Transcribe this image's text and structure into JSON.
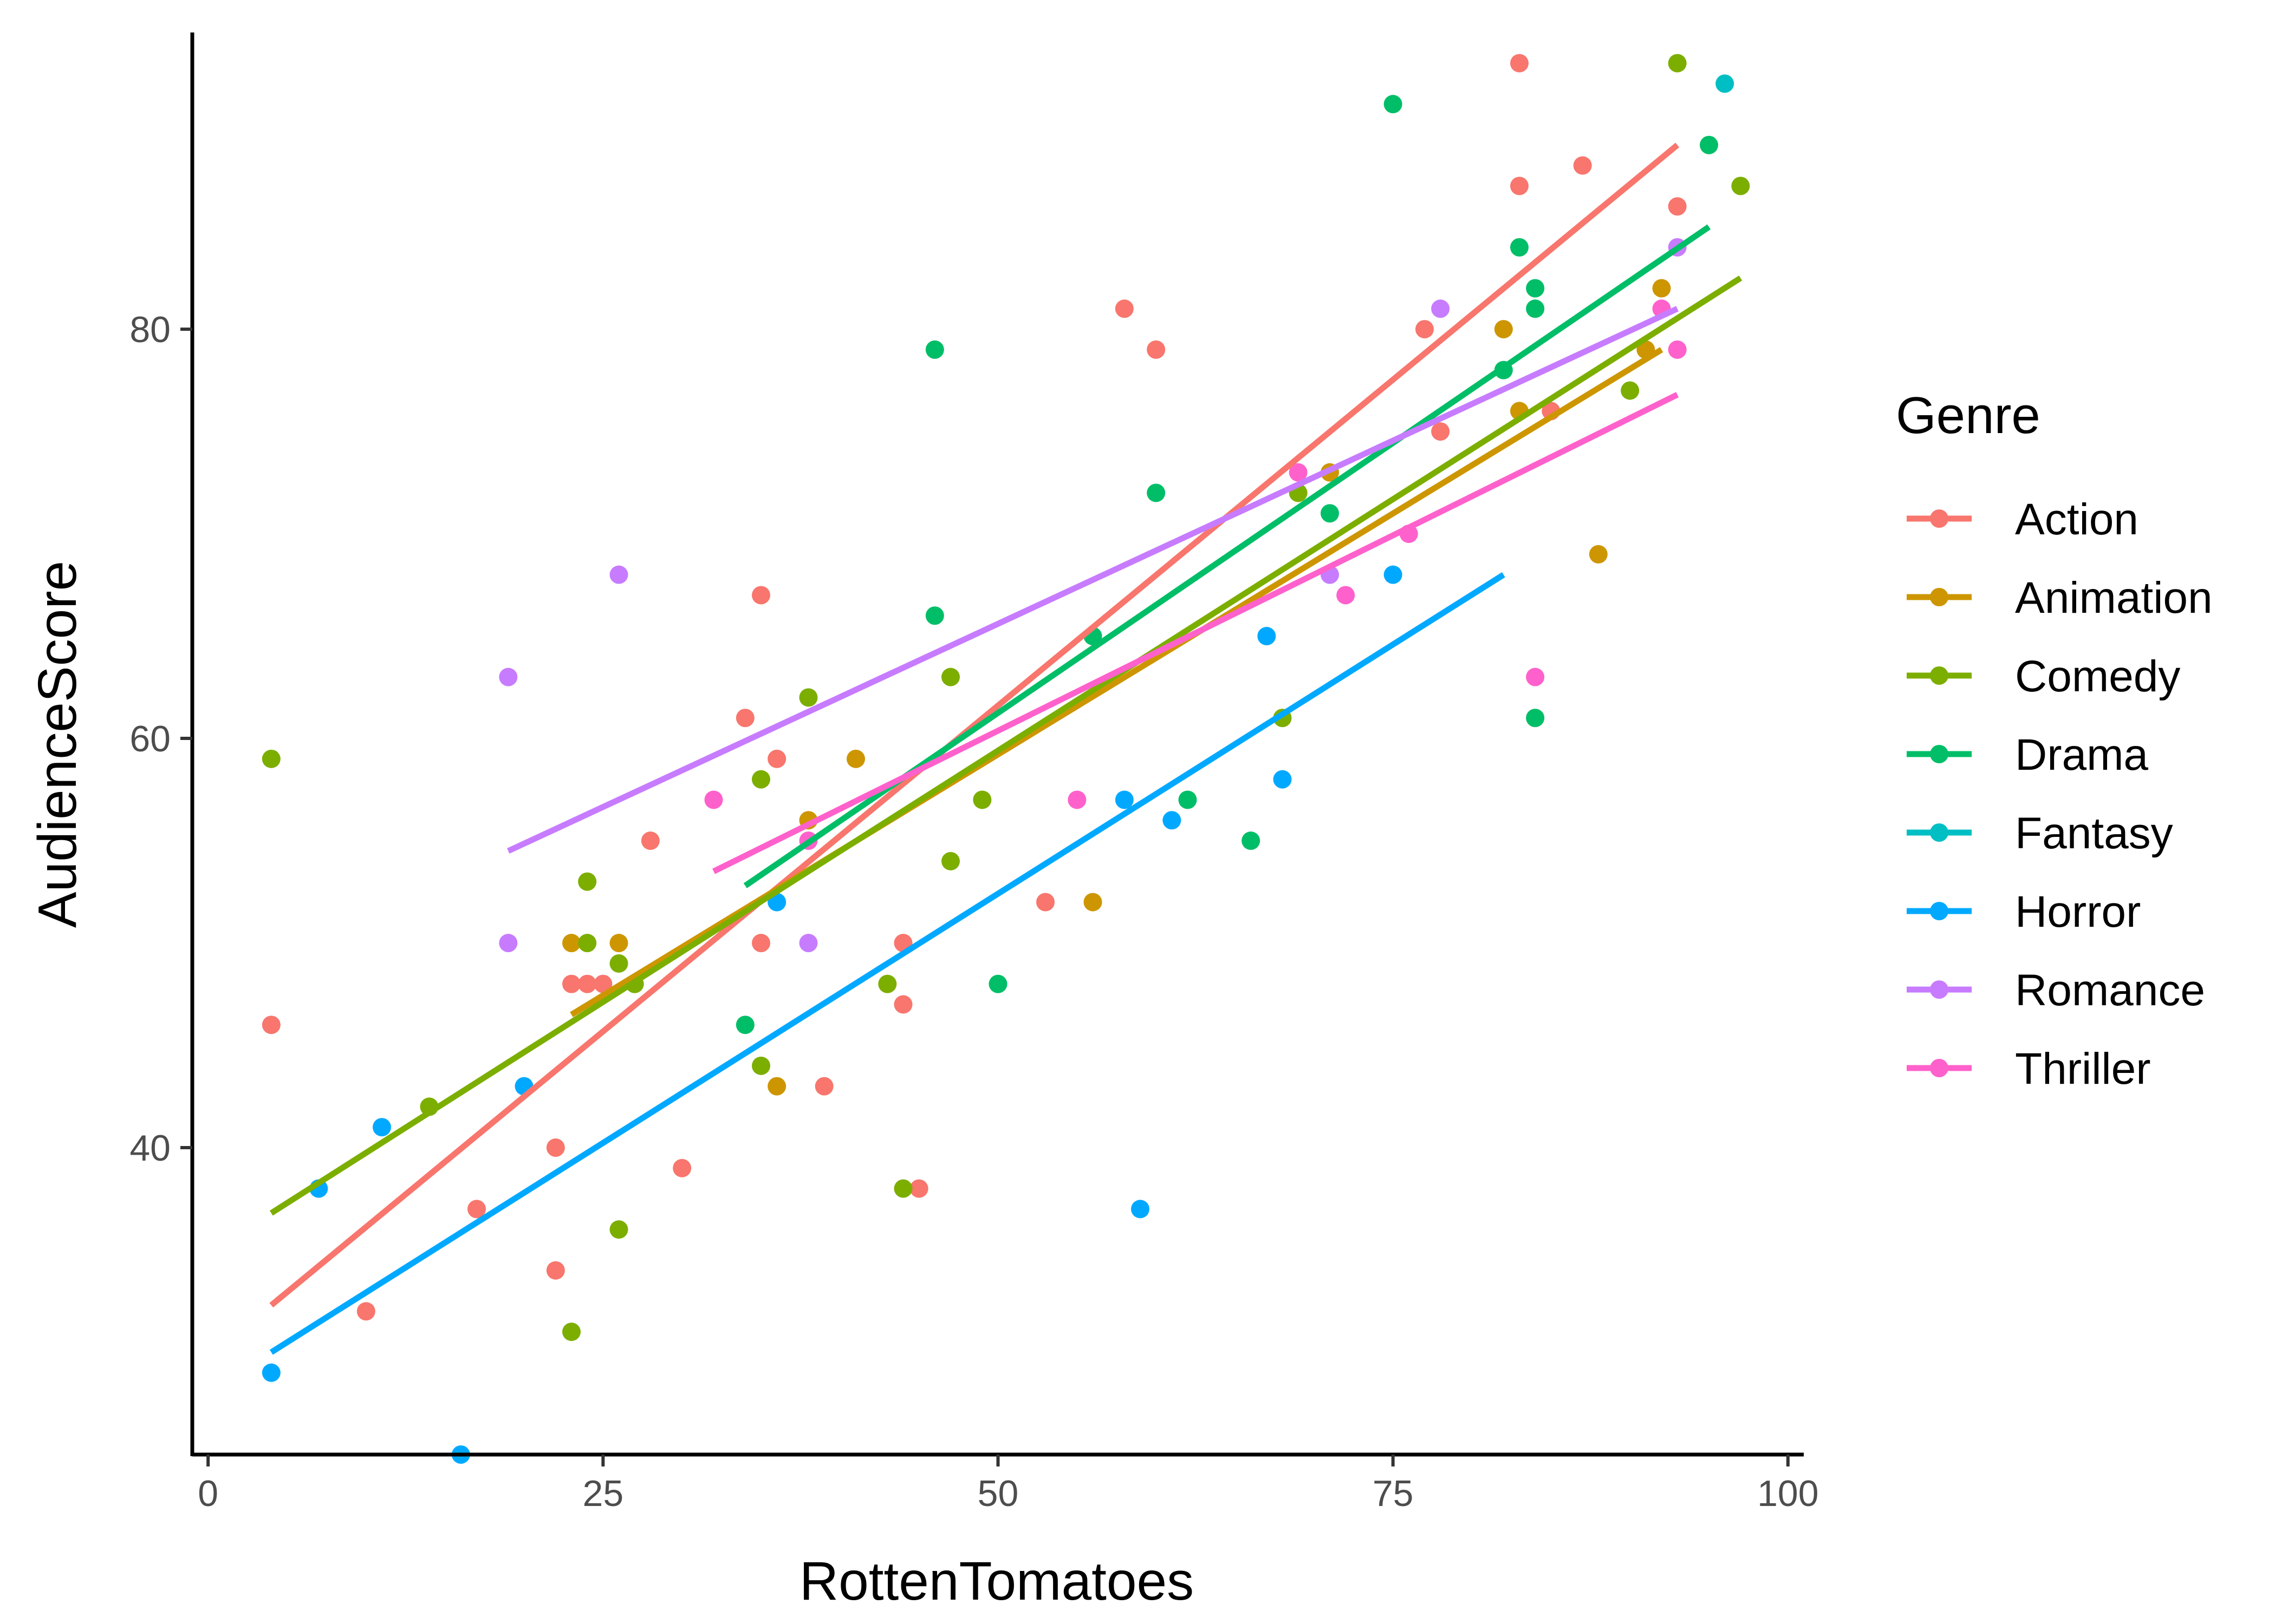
{
  "chart_data": {
    "type": "scatter",
    "xlabel": "RottenTomatoes",
    "ylabel": "AudienceScore",
    "xlim": [
      -1,
      101
    ],
    "ylim": [
      25,
      94.5
    ],
    "x_ticks": [
      0,
      25,
      50,
      75,
      100
    ],
    "y_ticks": [
      40,
      60,
      80
    ],
    "x_tick_labels": [
      "0",
      "25",
      "50",
      "75",
      "100"
    ],
    "y_tick_labels": [
      "40",
      "60",
      "80"
    ],
    "grid": false,
    "legend": {
      "title": "Genre",
      "position": "right"
    },
    "series": [
      {
        "name": "Action",
        "color": "#F8766D",
        "points": [
          [
            4,
            46
          ],
          [
            10,
            32
          ],
          [
            17,
            37
          ],
          [
            22,
            34
          ],
          [
            22,
            40
          ],
          [
            23,
            48
          ],
          [
            24,
            48
          ],
          [
            25,
            48
          ],
          [
            28,
            55
          ],
          [
            30,
            39
          ],
          [
            34,
            61
          ],
          [
            35,
            50
          ],
          [
            35,
            67
          ],
          [
            36,
            59
          ],
          [
            39,
            43
          ],
          [
            44,
            50
          ],
          [
            44,
            47
          ],
          [
            45,
            38
          ],
          [
            53,
            52
          ],
          [
            58,
            81
          ],
          [
            60,
            79
          ],
          [
            77,
            80
          ],
          [
            78,
            75
          ],
          [
            83,
            93
          ],
          [
            83,
            87
          ],
          [
            85,
            76
          ],
          [
            87,
            88
          ],
          [
            93,
            86
          ]
        ],
        "fit": [
          [
            4,
            32.3
          ],
          [
            93,
            89
          ]
        ]
      },
      {
        "name": "Animation",
        "color": "#CD9600",
        "points": [
          [
            23,
            50
          ],
          [
            26,
            50
          ],
          [
            36,
            43
          ],
          [
            38,
            56
          ],
          [
            41,
            59
          ],
          [
            56,
            52
          ],
          [
            71,
            73
          ],
          [
            82,
            80
          ],
          [
            83,
            76
          ],
          [
            88,
            69
          ],
          [
            91,
            79
          ],
          [
            92,
            82
          ]
        ],
        "fit": [
          [
            23,
            46.5
          ],
          [
            92,
            79
          ]
        ]
      },
      {
        "name": "Comedy",
        "color": "#7CAE00",
        "points": [
          [
            4,
            59
          ],
          [
            14,
            42
          ],
          [
            23,
            31
          ],
          [
            24,
            53
          ],
          [
            24,
            50
          ],
          [
            26,
            49
          ],
          [
            26,
            36
          ],
          [
            27,
            48
          ],
          [
            35,
            58
          ],
          [
            35,
            44
          ],
          [
            38,
            62
          ],
          [
            43,
            48
          ],
          [
            44,
            38
          ],
          [
            47,
            63
          ],
          [
            47,
            54
          ],
          [
            49,
            57
          ],
          [
            68,
            61
          ],
          [
            69,
            72
          ],
          [
            90,
            77
          ],
          [
            93,
            93
          ],
          [
            97,
            87
          ]
        ],
        "fit": [
          [
            4,
            36.8
          ],
          [
            97,
            82.5
          ]
        ]
      },
      {
        "name": "Drama",
        "color": "#00BE67",
        "points": [
          [
            34,
            46
          ],
          [
            46,
            79
          ],
          [
            46,
            66
          ],
          [
            50,
            48
          ],
          [
            56,
            65
          ],
          [
            60,
            72
          ],
          [
            62,
            57
          ],
          [
            66,
            55
          ],
          [
            71,
            71
          ],
          [
            75,
            91
          ],
          [
            82,
            78
          ],
          [
            83,
            84
          ],
          [
            84,
            82
          ],
          [
            84,
            81
          ],
          [
            84,
            61
          ],
          [
            95,
            89
          ]
        ],
        "fit": [
          [
            34,
            52.8
          ],
          [
            95,
            85
          ]
        ]
      },
      {
        "name": "Fantasy",
        "color": "#00BFC4",
        "points": [
          [
            96,
            92
          ]
        ],
        "fit": []
      },
      {
        "name": "Horror",
        "color": "#00A9FF",
        "points": [
          [
            4,
            29
          ],
          [
            7,
            38
          ],
          [
            11,
            41
          ],
          [
            16,
            25
          ],
          [
            20,
            43
          ],
          [
            36,
            52
          ],
          [
            58,
            57
          ],
          [
            59,
            37
          ],
          [
            61,
            56
          ],
          [
            67,
            65
          ],
          [
            68,
            58
          ],
          [
            75,
            68
          ]
        ],
        "fit": [
          [
            4,
            30
          ],
          [
            82,
            68
          ]
        ]
      },
      {
        "name": "Romance",
        "color": "#C77CFF",
        "points": [
          [
            19,
            63
          ],
          [
            19,
            50
          ],
          [
            26,
            68
          ],
          [
            38,
            50
          ],
          [
            71,
            68
          ],
          [
            78,
            81
          ],
          [
            93,
            84
          ]
        ],
        "fit": [
          [
            19,
            54.5
          ],
          [
            93,
            81
          ]
        ]
      },
      {
        "name": "Thriller",
        "color": "#FF61CC",
        "points": [
          [
            32,
            57
          ],
          [
            38,
            55
          ],
          [
            55,
            57
          ],
          [
            69,
            73
          ],
          [
            72,
            67
          ],
          [
            76,
            70
          ],
          [
            84,
            63
          ],
          [
            92,
            81
          ],
          [
            93,
            79
          ]
        ],
        "fit": [
          [
            32,
            53.5
          ],
          [
            93,
            76.8
          ]
        ]
      }
    ]
  }
}
